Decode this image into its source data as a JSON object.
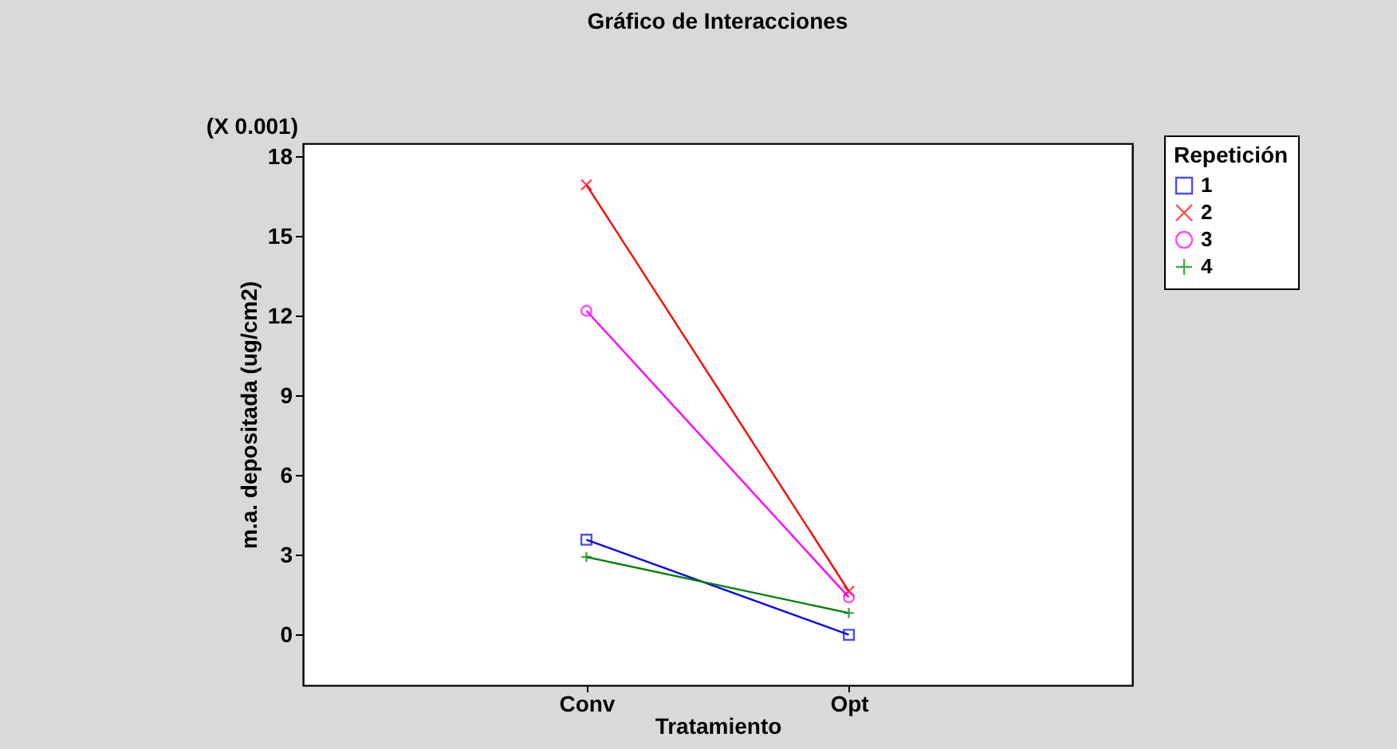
{
  "chart_data": {
    "type": "line",
    "title": "Gráfico de Interacciones",
    "xlabel": "Tratamiento",
    "ylabel": "m.a. depositada  (ug/cm2)",
    "legend_title": "Repetición",
    "annotations": [
      "(X 0.001)"
    ],
    "categories": [
      "Conv",
      "Opt"
    ],
    "series": [
      {
        "name": "1",
        "color": "#0000ff",
        "marker": "square",
        "values": [
          3.58,
          0.0
        ]
      },
      {
        "name": "2",
        "color": "#ff0000",
        "marker": "cross",
        "values": [
          16.94,
          1.64
        ]
      },
      {
        "name": "3",
        "color": "#ff00ff",
        "marker": "circle",
        "values": [
          12.2,
          1.41
        ]
      },
      {
        "name": "4",
        "color": "#008000",
        "marker": "plus",
        "values": [
          2.93,
          0.82
        ]
      }
    ],
    "ylim": [
      -1.9,
      18.5
    ],
    "yticks": [
      0,
      3,
      6,
      9,
      12,
      15,
      18
    ],
    "grid": false,
    "legend": "top right",
    "line_style": "solid"
  }
}
